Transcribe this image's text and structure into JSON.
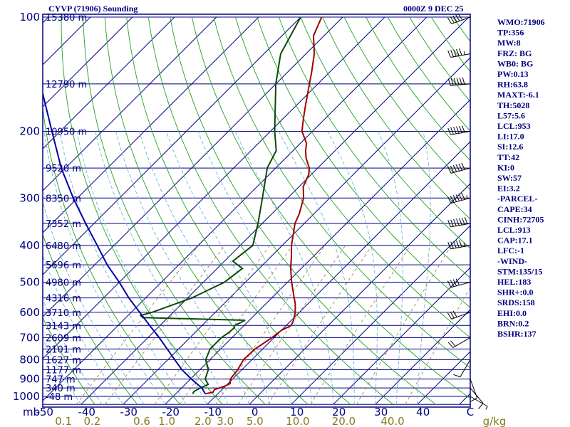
{
  "header": {
    "station": "CYVP (71906) Sounding",
    "time": "0000Z  9 DEC 25"
  },
  "colors": {
    "frame": "#000080",
    "isobar": "#000080",
    "isotherm": "#000080",
    "dry_adiabat": "#22a022",
    "moist_adiabat": "#6fb6d8",
    "mixing_ratio": "#9a8a5a",
    "temperature": "#a00000",
    "dewpoint": "#0a4a0a",
    "parcel": "#0000aa",
    "mixing_label": "#8a7a1e"
  },
  "chart_data": {
    "type": "line",
    "diagram": "skew-T log-P",
    "title": "CYVP (71906) Sounding",
    "xlabel": "",
    "ylabel": "mb",
    "pressure_ticks": [
      100,
      200,
      300,
      400,
      500,
      600,
      700,
      800,
      900,
      1000
    ],
    "temperature_ticks": [
      -50,
      -40,
      -30,
      -20,
      -10,
      0,
      10,
      20,
      30,
      40
    ],
    "temperature_tick_labels": [
      "-50",
      "-40",
      "-30",
      "-20",
      "-10",
      "0",
      "10",
      "20",
      "30",
      "40"
    ],
    "temperature_unit_label": "C",
    "mixing_ratio_ticks": [
      0.1,
      0.2,
      0.6,
      1.0,
      2.0,
      3.0,
      5.0,
      10.0,
      20.0,
      40.0
    ],
    "mixing_ratio_labels": [
      "0.1",
      "0.2",
      "0.6",
      "1.0",
      "2.0",
      "3.0",
      "5.0",
      "10.0",
      "20.0",
      "40.0"
    ],
    "mixing_ratio_unit": "g/kg",
    "ylim": [
      1050,
      100
    ],
    "height_labels": [
      {
        "p": 100,
        "text": "15380 m"
      },
      {
        "p": 150,
        "text": "12790 m"
      },
      {
        "p": 200,
        "text": "10950 m"
      },
      {
        "p": 250,
        "text": "9520 m"
      },
      {
        "p": 300,
        "text": "8350 m"
      },
      {
        "p": 350,
        "text": "7352 m"
      },
      {
        "p": 400,
        "text": "6480 m"
      },
      {
        "p": 450,
        "text": "5696 m"
      },
      {
        "p": 500,
        "text": "4980 m"
      },
      {
        "p": 550,
        "text": "4316 m"
      },
      {
        "p": 600,
        "text": "3710 m"
      },
      {
        "p": 650,
        "text": "3143 m"
      },
      {
        "p": 700,
        "text": "2609 m"
      },
      {
        "p": 750,
        "text": "2101 m"
      },
      {
        "p": 800,
        "text": "1627 m"
      },
      {
        "p": 850,
        "text": "1177 m"
      },
      {
        "p": 900,
        "text": "747 m"
      },
      {
        "p": 950,
        "text": "340 m"
      },
      {
        "p": 1000,
        "text": "-48 m"
      }
    ],
    "series": [
      {
        "key": "temperature",
        "points": [
          [
            984,
            -13
          ],
          [
            975,
            -11.5
          ],
          [
            960,
            -11.8
          ],
          [
            940,
            -10.2
          ],
          [
            925,
            -9.5
          ],
          [
            900,
            -10.5
          ],
          [
            870,
            -10.8
          ],
          [
            850,
            -11
          ],
          [
            800,
            -12
          ],
          [
            750,
            -11.8
          ],
          [
            700,
            -10.5
          ],
          [
            670,
            -10
          ],
          [
            650,
            -8.8
          ],
          [
            630,
            -9.5
          ],
          [
            600,
            -11
          ],
          [
            570,
            -13
          ],
          [
            540,
            -15.5
          ],
          [
            500,
            -19
          ],
          [
            460,
            -22.5
          ],
          [
            430,
            -25
          ],
          [
            400,
            -27.8
          ],
          [
            350,
            -32.2
          ],
          [
            330,
            -33.5
          ],
          [
            300,
            -36.2
          ],
          [
            280,
            -39
          ],
          [
            260,
            -40.6
          ],
          [
            250,
            -42
          ],
          [
            235,
            -45.2
          ],
          [
            225,
            -47
          ],
          [
            215,
            -48.6
          ],
          [
            200,
            -52.5
          ],
          [
            185,
            -55.2
          ],
          [
            170,
            -58
          ],
          [
            150,
            -62
          ],
          [
            140,
            -64.2
          ],
          [
            125,
            -68
          ],
          [
            112,
            -72.5
          ],
          [
            100,
            -75
          ]
        ]
      },
      {
        "key": "dewpoint",
        "points": [
          [
            984,
            -16
          ],
          [
            970,
            -16.2
          ],
          [
            950,
            -15.5
          ],
          [
            930,
            -14.5
          ],
          [
            900,
            -16.5
          ],
          [
            850,
            -18
          ],
          [
            800,
            -21
          ],
          [
            750,
            -22.5
          ],
          [
            700,
            -22.5
          ],
          [
            680,
            -22
          ],
          [
            660,
            -21.8
          ],
          [
            650,
            -22.2
          ],
          [
            630,
            -21
          ],
          [
            620,
            -46
          ],
          [
            612,
            -47
          ],
          [
            600,
            -45
          ],
          [
            550,
            -39
          ],
          [
            500,
            -35
          ],
          [
            460,
            -34
          ],
          [
            440,
            -38
          ],
          [
            400,
            -37
          ],
          [
            350,
            -41
          ],
          [
            300,
            -46
          ],
          [
            250,
            -52
          ],
          [
            225,
            -54
          ],
          [
            200,
            -59
          ],
          [
            150,
            -70
          ],
          [
            125,
            -76
          ],
          [
            100,
            -80
          ]
        ]
      },
      {
        "key": "parcel",
        "points": [
          [
            984,
            -13
          ],
          [
            950,
            -15.2
          ],
          [
            900,
            -19.8
          ],
          [
            850,
            -24.3
          ],
          [
            800,
            -28.4
          ],
          [
            750,
            -32.7
          ],
          [
            700,
            -37.3
          ],
          [
            650,
            -42.5
          ],
          [
            600,
            -48
          ],
          [
            550,
            -54
          ],
          [
            500,
            -60
          ],
          [
            450,
            -67
          ],
          [
            400,
            -74
          ],
          [
            350,
            -82
          ],
          [
            300,
            -91
          ],
          [
            250,
            -101
          ],
          [
            200,
            -112
          ],
          [
            150,
            -126
          ],
          [
            125,
            -133
          ],
          [
            100,
            -142
          ]
        ]
      }
    ],
    "winds": [
      {
        "p": 100,
        "dir": 250,
        "spd": 50
      },
      {
        "p": 125,
        "dir": 260,
        "spd": 55
      },
      {
        "p": 150,
        "dir": 265,
        "spd": 60
      },
      {
        "p": 200,
        "dir": 260,
        "spd": 60
      },
      {
        "p": 250,
        "dir": 255,
        "spd": 60
      },
      {
        "p": 300,
        "dir": 255,
        "spd": 65
      },
      {
        "p": 350,
        "dir": 260,
        "spd": 70
      },
      {
        "p": 400,
        "dir": 260,
        "spd": 55
      },
      {
        "p": 500,
        "dir": 255,
        "spd": 40
      },
      {
        "p": 600,
        "dir": 250,
        "spd": 30
      },
      {
        "p": 700,
        "dir": 240,
        "spd": 20
      },
      {
        "p": 800,
        "dir": 210,
        "spd": 10
      },
      {
        "p": 900,
        "dir": 160,
        "spd": 10
      },
      {
        "p": 950,
        "dir": 140,
        "spd": 10
      },
      {
        "p": 1000,
        "dir": 120,
        "spd": 5
      }
    ],
    "indices": [
      "WMO:71906",
      "TP:356",
      "MW:8",
      "FRZ: BG",
      "WB0: BG",
      "PW:0.13",
      "RH:63.8",
      "MAXT:-6.1",
      "TH:5028",
      "L57:5.6",
      "LCL:953",
      "LI:17.0",
      "SI:12.6",
      "TT:42",
      "KI:0",
      "SW:57",
      "EI:3.2",
      "-PARCEL-",
      "CAPE:34",
      "CINH:72705",
      "LCL:913",
      "CAP:17.1",
      "LFC:-1",
      "-WIND-",
      "STM:135/15",
      "HEL:183",
      "SHR+:0.0",
      "SRDS:158",
      "EHI:0.0",
      "BRN:0.2",
      "BSHR:137"
    ]
  }
}
